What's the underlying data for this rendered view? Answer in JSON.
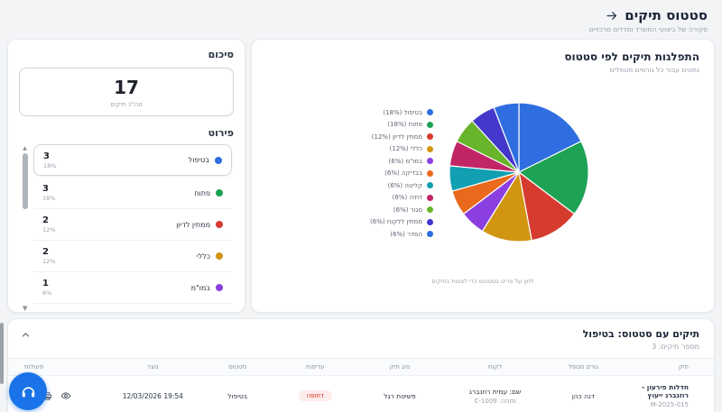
{
  "page": {
    "title": "סטטוס תיקים",
    "subtitle": "סקירה של ביצועי המשרד ומדדים מרכזיים"
  },
  "summary": {
    "section_title": "סיכום",
    "total_value": "17",
    "total_label": "סה\"כ תיקים",
    "details_title": "פירוט",
    "items": [
      {
        "label": "בטיפול",
        "count": "3",
        "percent": "18%",
        "color": "#2e6ee0",
        "selected": true
      },
      {
        "label": "פתוח",
        "count": "3",
        "percent": "18%",
        "color": "#1da353",
        "selected": false
      },
      {
        "label": "ממתין לדיון",
        "count": "2",
        "percent": "12%",
        "color": "#d63b2f",
        "selected": false
      },
      {
        "label": "כללי",
        "count": "2",
        "percent": "12%",
        "color": "#d19512",
        "selected": false
      },
      {
        "label": "במו\"מ",
        "count": "1",
        "percent": "6%",
        "color": "#8c3fe0",
        "selected": false
      }
    ]
  },
  "chart": {
    "title": "התפלגות תיקים לפי סטטוס",
    "subtitle": "נתונים עבור כל גורמים מטפלים",
    "footnote": "לחץ על פריט בסטטוס כדי לצפות בתיקים"
  },
  "chart_data": {
    "type": "pie",
    "title": "התפלגות תיקים לפי סטטוס",
    "labels": [
      "בטיפול",
      "פתוח",
      "ממתין לדיון",
      "כללי",
      "במו\"מ",
      "בבדיקה",
      "קליטה",
      "דחיה",
      "סגור",
      "ממתין ללקוח",
      "הסדר"
    ],
    "values": [
      3,
      3,
      2,
      2,
      1,
      1,
      1,
      1,
      1,
      1,
      1
    ],
    "percent_labels": [
      "18%",
      "18%",
      "12%",
      "12%",
      "6%",
      "6%",
      "6%",
      "6%",
      "6%",
      "6%",
      "6%"
    ],
    "colors": [
      "#2e6ee0",
      "#1da353",
      "#d63b2f",
      "#d19512",
      "#8c3fe0",
      "#ea6a1d",
      "#129fb2",
      "#c12566",
      "#68b42c",
      "#4438cc",
      "#2e6ee0"
    ],
    "total": 17,
    "legend_position": "left",
    "start_angle_deg": 0,
    "direction": "clockwise"
  },
  "cases": {
    "title": "תיקים עם סטטוס: בטיפול",
    "count_label": "מספר תיקים: 3",
    "table": {
      "headers": [
        "תיק",
        "גורם מטפל",
        "לקוח",
        "סוג תיק",
        "עדיפות",
        "סטטוס",
        "נוצר",
        "פעולות"
      ],
      "rows": [
        {
          "case_name": "חדלות פירעון - רוזנברג ייעוץ",
          "case_id": "M-2025-015",
          "handler": "דנה כהן",
          "client_name": "שם: עמית רוזנברג",
          "client_id": "מזהה: C-1009",
          "case_type": "פשיטת רגל",
          "priority": "דחופה",
          "status": "בטיפול",
          "created": "19:54 12/03/2026"
        }
      ]
    }
  },
  "colors": {
    "accent": "#1a73e8",
    "danger": "#d93025",
    "danger_bg": "#fdecec",
    "title_text": "#1c2538",
    "muted_text": "#99a0ac",
    "page_bg": "#f2f4f6"
  }
}
